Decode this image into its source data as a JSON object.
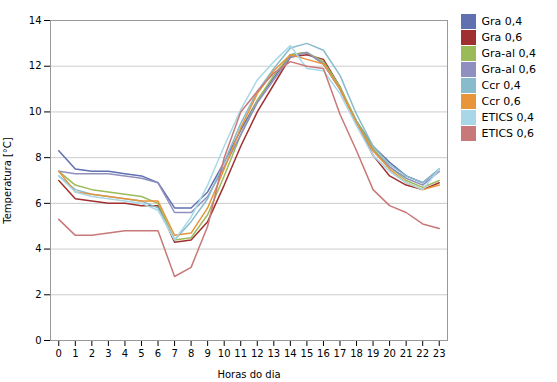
{
  "chart_data": {
    "type": "line",
    "xlabel": "Horas do dia",
    "ylabel": "Temperatura [°C]",
    "x": [
      0,
      1,
      2,
      3,
      4,
      5,
      6,
      7,
      8,
      9,
      10,
      11,
      12,
      13,
      14,
      15,
      16,
      17,
      18,
      19,
      20,
      21,
      22,
      23
    ],
    "series": [
      {
        "name": "Gra 0,4",
        "color": "#6070B0",
        "values": [
          8.3,
          7.5,
          7.4,
          7.4,
          7.3,
          7.2,
          6.9,
          5.8,
          5.8,
          6.5,
          7.8,
          9.2,
          10.5,
          11.5,
          12.5,
          12.6,
          12.1,
          11.0,
          9.6,
          8.5,
          7.8,
          7.2,
          6.9,
          7.5
        ]
      },
      {
        "name": "Gra 0,6",
        "color": "#A03030",
        "values": [
          7.0,
          6.2,
          6.1,
          6.0,
          6.0,
          5.9,
          5.9,
          4.3,
          4.4,
          5.2,
          6.8,
          8.5,
          10.0,
          11.2,
          12.4,
          12.5,
          12.3,
          11.1,
          9.5,
          8.1,
          7.2,
          6.8,
          6.6,
          6.9
        ]
      },
      {
        "name": "Gra-al 0,4",
        "color": "#9BBB59",
        "values": [
          7.4,
          6.8,
          6.6,
          6.5,
          6.4,
          6.3,
          6.0,
          4.4,
          4.5,
          5.5,
          7.2,
          9.0,
          10.5,
          11.6,
          12.5,
          12.6,
          12.2,
          11.1,
          9.6,
          8.4,
          7.6,
          7.0,
          6.7,
          7.0
        ]
      },
      {
        "name": "Gra-al 0,6",
        "color": "#9090C0",
        "values": [
          7.4,
          7.3,
          7.3,
          7.3,
          7.2,
          7.1,
          6.9,
          5.6,
          5.6,
          6.3,
          7.6,
          9.0,
          10.4,
          11.4,
          12.4,
          12.6,
          12.1,
          11.0,
          9.5,
          8.3,
          7.6,
          7.1,
          6.8,
          7.4
        ]
      },
      {
        "name": "Ccr 0,4",
        "color": "#88BBCC",
        "values": [
          7.2,
          6.6,
          6.4,
          6.3,
          6.2,
          6.1,
          5.8,
          4.4,
          5.2,
          6.2,
          7.8,
          9.5,
          10.9,
          11.9,
          12.8,
          13.0,
          12.7,
          11.6,
          9.9,
          8.5,
          7.7,
          7.2,
          6.9,
          7.5
        ]
      },
      {
        "name": "Ccr 0,6",
        "color": "#E8943A",
        "values": [
          7.4,
          6.5,
          6.4,
          6.3,
          6.2,
          6.1,
          6.1,
          4.6,
          4.7,
          5.8,
          7.5,
          9.3,
          10.8,
          11.8,
          12.5,
          12.3,
          12.1,
          11.0,
          9.5,
          8.3,
          7.5,
          6.9,
          6.6,
          6.8
        ]
      },
      {
        "name": "ETICS 0,4",
        "color": "#A8D8E8",
        "values": [
          7.2,
          6.5,
          6.3,
          6.2,
          6.1,
          6.0,
          5.7,
          4.4,
          5.4,
          6.8,
          8.5,
          10.1,
          11.4,
          12.2,
          12.9,
          11.9,
          11.8,
          10.8,
          9.4,
          8.1,
          7.4,
          6.9,
          6.6,
          7.5
        ]
      },
      {
        "name": "ETICS 0,6",
        "color": "#C87878",
        "values": [
          5.3,
          4.6,
          4.6,
          4.7,
          4.8,
          4.8,
          4.8,
          2.8,
          3.2,
          5.0,
          8.0,
          10.0,
          10.9,
          11.7,
          12.2,
          12.0,
          11.9,
          9.9,
          8.3,
          6.6,
          5.9,
          5.6,
          5.1,
          4.9
        ]
      }
    ],
    "xlim": [
      -0.5,
      23.5
    ],
    "ylim": [
      0,
      14
    ],
    "xticks": [
      0,
      1,
      2,
      3,
      4,
      5,
      6,
      7,
      8,
      9,
      10,
      11,
      12,
      13,
      14,
      15,
      16,
      17,
      18,
      19,
      20,
      21,
      22,
      23
    ],
    "yticks": [
      0,
      2,
      4,
      6,
      8,
      10,
      12,
      14
    ],
    "grid": "y",
    "legend": "right"
  }
}
